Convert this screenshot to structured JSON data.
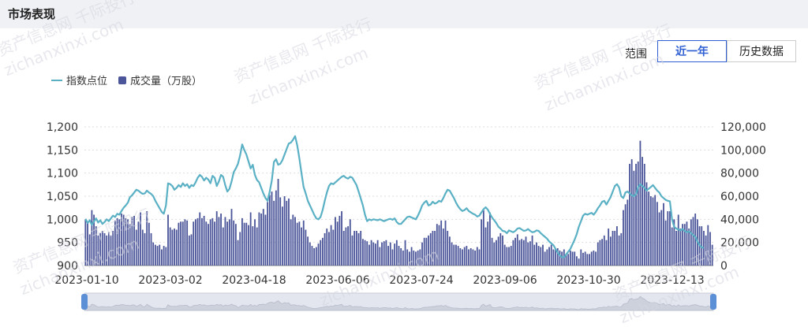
{
  "header": {
    "title": "市场表现"
  },
  "range": {
    "label": "范围",
    "buttons": [
      "近一年",
      "历史数据"
    ],
    "active": 0
  },
  "watermark": {
    "line1": "资产信息网 千际投行",
    "line2": "zichanxinxi.com"
  },
  "colors": {
    "line": "#5ab0c4",
    "bar": "#4b5599",
    "accent": "#2f5fd3"
  },
  "chart_data": {
    "type": "bar+line",
    "legend": [
      "指数点位",
      "成交量（万股）"
    ],
    "x_ticks": [
      "2023-01-10",
      "2023-03-02",
      "2023-04-18",
      "2023-06-06",
      "2023-07-24",
      "2023-09-06",
      "2023-10-30",
      "2023-12-13"
    ],
    "y_left": {
      "ticks": [
        "900",
        "950",
        "1,000",
        "1,050",
        "1,100",
        "1,150",
        "1,200"
      ],
      "min": 900,
      "max": 1200
    },
    "y_right": {
      "ticks": [
        "0",
        "20,000",
        "40,000",
        "60,000",
        "80,000",
        "100,000",
        "120,000"
      ],
      "min": 0,
      "max": 120000
    },
    "grid": true,
    "series": [
      {
        "name": "指数点位",
        "type": "line",
        "values": [
          1001,
          992,
          998,
          988,
          995,
          1002,
          993,
          998,
          990,
          994,
          1000,
          996,
          1002,
          1008,
          1005,
          1012,
          1010,
          1018,
          1025,
          1030,
          1036,
          1048,
          1052,
          1058,
          1064,
          1062,
          1058,
          1055,
          1056,
          1062,
          1058,
          1055,
          1050,
          1040,
          1032,
          1024,
          1016,
          1012,
          1030,
          1078,
          1076,
          1072,
          1064,
          1068,
          1074,
          1070,
          1078,
          1072,
          1076,
          1068,
          1074,
          1072,
          1080,
          1090,
          1096,
          1092,
          1084,
          1090,
          1086,
          1078,
          1094,
          1090,
          1072,
          1082,
          1096,
          1092,
          1074,
          1060,
          1066,
          1082,
          1102,
          1110,
          1120,
          1138,
          1162,
          1150,
          1140,
          1125,
          1110,
          1118,
          1096,
          1085,
          1080,
          1068,
          1056,
          1046,
          1040,
          1060,
          1084,
          1124,
          1130,
          1118,
          1120,
          1128,
          1140,
          1152,
          1164,
          1166,
          1172,
          1180,
          1160,
          1132,
          1100,
          1070,
          1056,
          1040,
          1030,
          1020,
          1010,
          1002,
          1000,
          1005,
          1020,
          1040,
          1058,
          1072,
          1078,
          1076,
          1080,
          1084,
          1088,
          1092,
          1094,
          1090,
          1088,
          1092,
          1090,
          1082,
          1074,
          1060,
          1045,
          1030,
          1010,
          996,
          1000,
          998,
          1000,
          999,
          998,
          1000,
          998,
          996,
          998,
          1000,
          1001,
          999,
          1002,
          994,
          990,
          990,
          995,
          1000,
          1005,
          1006,
          1004,
          1002,
          1000,
          1008,
          1018,
          1030,
          1036,
          1040,
          1030,
          1032,
          1038,
          1034,
          1036,
          1040,
          1038,
          1046,
          1056,
          1064,
          1062,
          1054,
          1046,
          1036,
          1028,
          1022,
          1018,
          1020,
          1024,
          1018,
          1015,
          1012,
          1010,
          1006,
          1008,
          1015,
          1022,
          1026,
          1021,
          1012,
          1004,
          998,
          992,
          984,
          980,
          975,
          974,
          970,
          976,
          974,
          972,
          975,
          980,
          981,
          978,
          975,
          976,
          979,
          975,
          972,
          973,
          976,
          975,
          970,
          966,
          962,
          958,
          952,
          948,
          944,
          936,
          928,
          922,
          918,
          918,
          924,
          930,
          936,
          946,
          956,
          968,
          984,
          996,
          1008,
          1012,
          1010,
          1012,
          1014,
          1010,
          1016,
          1024,
          1030,
          1038,
          1040,
          1032,
          1040,
          1048,
          1060,
          1072,
          1076,
          1069,
          1050,
          1046,
          1058,
          1060,
          1056,
          1052,
          1050,
          1054,
          1070,
          1076,
          1072,
          1068,
          1062,
          1066,
          1070,
          1074,
          1068,
          1062,
          1058,
          1050,
          1046,
          1042,
          1040,
          1039,
          1000,
          984,
          980,
          978,
          976,
          979,
          975,
          972,
          974,
          970,
          966,
          962,
          952,
          944,
          940,
          938
        ]
      },
      {
        "name": "成交量（万股）",
        "type": "bar",
        "values": [
          40000,
          37000,
          27000,
          48000,
          44000,
          34000,
          26000,
          28000,
          30000,
          28000,
          26000,
          29000,
          26000,
          30000,
          39000,
          41000,
          40000,
          45000,
          44000,
          41000,
          40000,
          36000,
          42000,
          43000,
          31000,
          38000,
          46000,
          31000,
          28000,
          47000,
          37000,
          28000,
          20000,
          18000,
          17000,
          18000,
          14000,
          17000,
          16000,
          44000,
          33000,
          31000,
          32000,
          31000,
          37000,
          38000,
          38000,
          40000,
          39000,
          26000,
          27000,
          38000,
          40000,
          41000,
          46000,
          41000,
          43000,
          38000,
          36000,
          40000,
          41000,
          38000,
          47000,
          42000,
          45000,
          33000,
          42000,
          38000,
          40000,
          49000,
          39000,
          36000,
          22000,
          29000,
          41000,
          37000,
          37000,
          35000,
          46000,
          34000,
          40000,
          33000,
          46000,
          45000,
          49000,
          44000,
          55000,
          61000,
          64000,
          56000,
          65000,
          75000,
          59000,
          51000,
          60000,
          56000,
          58000,
          40000,
          44000,
          42000,
          37000,
          38000,
          33000,
          39000,
          31000,
          25000,
          20000,
          17000,
          15000,
          16000,
          19000,
          22000,
          24000,
          28000,
          32000,
          29000,
          35000,
          31000,
          42000,
          38000,
          43000,
          47000,
          30000,
          33000,
          34000,
          40000,
          26000,
          30000,
          30000,
          28000,
          30000,
          23000,
          22000,
          21000,
          18000,
          22000,
          20000,
          19000,
          22000,
          16000,
          20000,
          21000,
          22000,
          17000,
          20000,
          14000,
          19000,
          22000,
          17000,
          15000,
          13000,
          22000,
          14000,
          12000,
          16000,
          13000,
          12000,
          13000,
          14000,
          20000,
          24000,
          24000,
          26000,
          28000,
          30000,
          30000,
          36000,
          35000,
          39000,
          32000,
          39000,
          30000,
          25000,
          20000,
          18000,
          18000,
          17000,
          15000,
          14000,
          16000,
          17000,
          14000,
          15000,
          14000,
          13000,
          16000,
          14000,
          40000,
          48000,
          33000,
          38000,
          46000,
          24000,
          20000,
          22000,
          25000,
          28000,
          26000,
          18000,
          16000,
          16000,
          17000,
          22000,
          24000,
          27000,
          22000,
          23000,
          22000,
          25000,
          20000,
          21000,
          26000,
          18000,
          20000,
          17000,
          16000,
          18000,
          12000,
          14000,
          16000,
          18000,
          14000,
          14000,
          15000,
          13000,
          12000,
          14000,
          10000,
          10000,
          13000,
          12000,
          12000,
          8000,
          6000,
          14000,
          11000,
          12000,
          10000,
          10000,
          12000,
          13000,
          12000,
          20000,
          22000,
          23000,
          26000,
          22000,
          32000,
          25000,
          30000,
          30000,
          34000,
          26000,
          28000,
          48000,
          53000,
          57000,
          88000,
          92000,
          82000,
          88000,
          90000,
          108000,
          94000,
          88000,
          72000,
          64000,
          60000,
          59000,
          61000,
          55000,
          46000,
          48000,
          54000,
          39000,
          47000,
          47000,
          33000,
          40000,
          30000,
          44000,
          32000,
          36000,
          36000,
          38000,
          32000,
          40000,
          42000,
          45000,
          40000,
          34000,
          34000,
          30000,
          26000,
          35000,
          29000,
          18000
        ]
      }
    ]
  }
}
